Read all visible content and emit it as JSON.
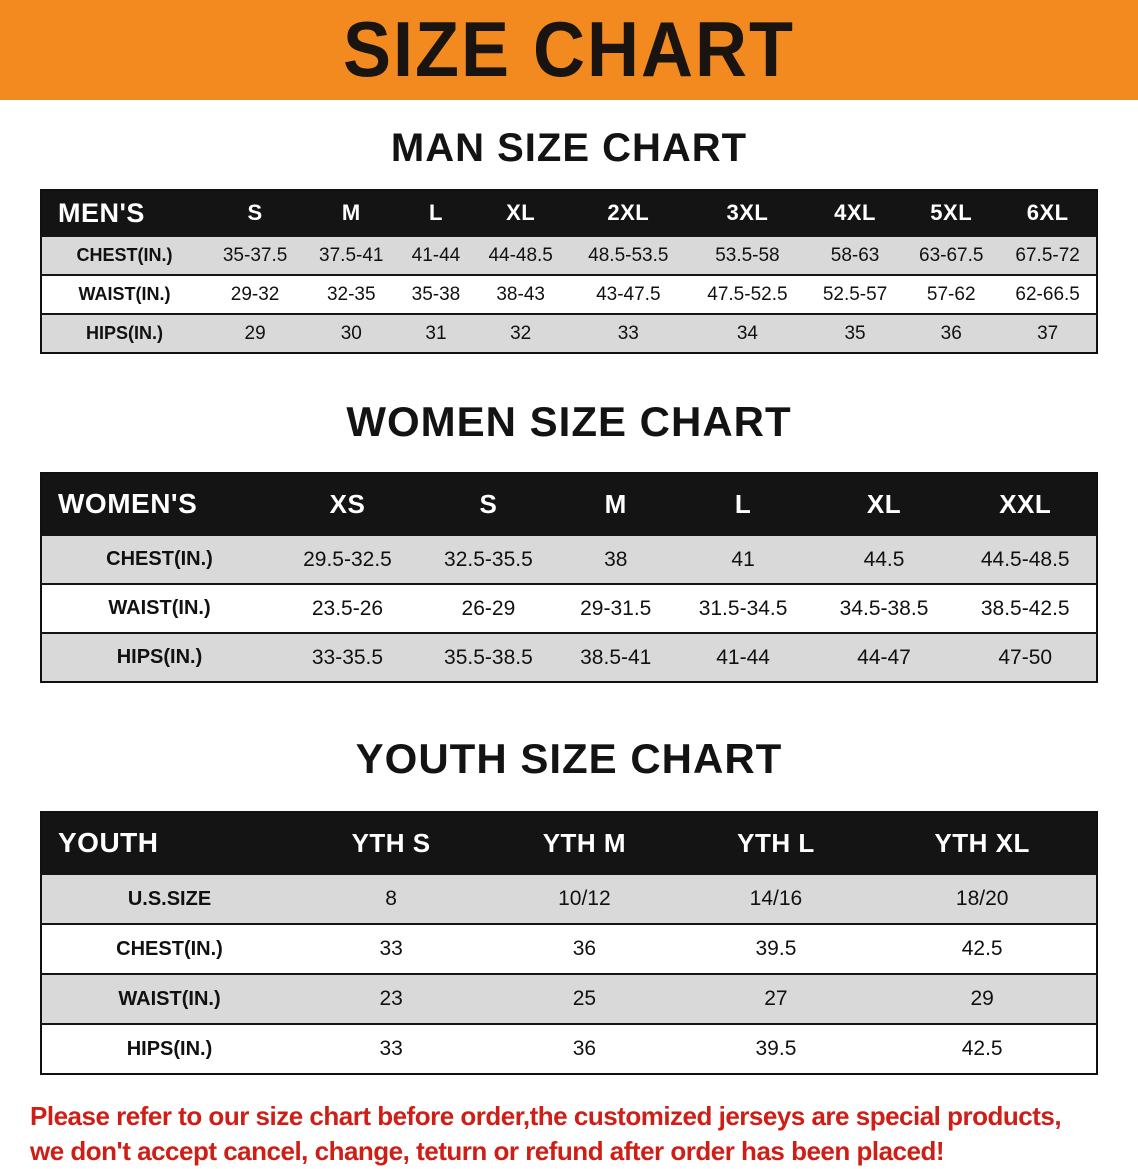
{
  "banner": {
    "title": "SIZE CHART"
  },
  "colors": {
    "banner_bg": "#f28a20",
    "table_header_bg": "#141414",
    "row_alt_bg": "#d9d9d9",
    "disclaimer_red": "#ce1e16"
  },
  "tables": [
    {
      "heading": "MAN SIZE CHART",
      "header": [
        "MEN'S",
        "S",
        "M",
        "L",
        "XL",
        "2XL",
        "3XL",
        "4XL",
        "5XL",
        "6XL"
      ],
      "rows": [
        [
          "CHEST(IN.)",
          "35-37.5",
          "37.5-41",
          "41-44",
          "44-48.5",
          "48.5-53.5",
          "53.5-58",
          "58-63",
          "63-67.5",
          "67.5-72"
        ],
        [
          "WAIST(IN.)",
          "29-32",
          "32-35",
          "35-38",
          "38-43",
          "43-47.5",
          "47.5-52.5",
          "52.5-57",
          "57-62",
          "62-66.5"
        ],
        [
          "HIPS(IN.)",
          "29",
          "30",
          "31",
          "32",
          "33",
          "34",
          "35",
          "36",
          "37"
        ]
      ]
    },
    {
      "heading": "WOMEN SIZE CHART",
      "header": [
        "WOMEN'S",
        "XS",
        "S",
        "M",
        "L",
        "XL",
        "XXL"
      ],
      "rows": [
        [
          "CHEST(IN.)",
          "29.5-32.5",
          "32.5-35.5",
          "38",
          "41",
          "44.5",
          "44.5-48.5"
        ],
        [
          "WAIST(IN.)",
          "23.5-26",
          "26-29",
          "29-31.5",
          "31.5-34.5",
          "34.5-38.5",
          "38.5-42.5"
        ],
        [
          "HIPS(IN.)",
          "33-35.5",
          "35.5-38.5",
          "38.5-41",
          "41-44",
          "44-47",
          "47-50"
        ]
      ]
    },
    {
      "heading": "YOUTH SIZE CHART",
      "header": [
        "YOUTH",
        "YTH S",
        "YTH M",
        "YTH L",
        "YTH XL"
      ],
      "rows": [
        [
          "U.S.SIZE",
          "8",
          "10/12",
          "14/16",
          "18/20"
        ],
        [
          "CHEST(IN.)",
          "33",
          "36",
          "39.5",
          "42.5"
        ],
        [
          "WAIST(IN.)",
          "23",
          "25",
          "27",
          "29"
        ],
        [
          "HIPS(IN.)",
          "33",
          "36",
          "39.5",
          "42.5"
        ]
      ]
    }
  ],
  "disclaimer": {
    "line1": "Please refer to our size chart before order,the customized jerseys are special products,",
    "line2": "we don't accept cancel, change, teturn or refund after order has been placed!"
  }
}
